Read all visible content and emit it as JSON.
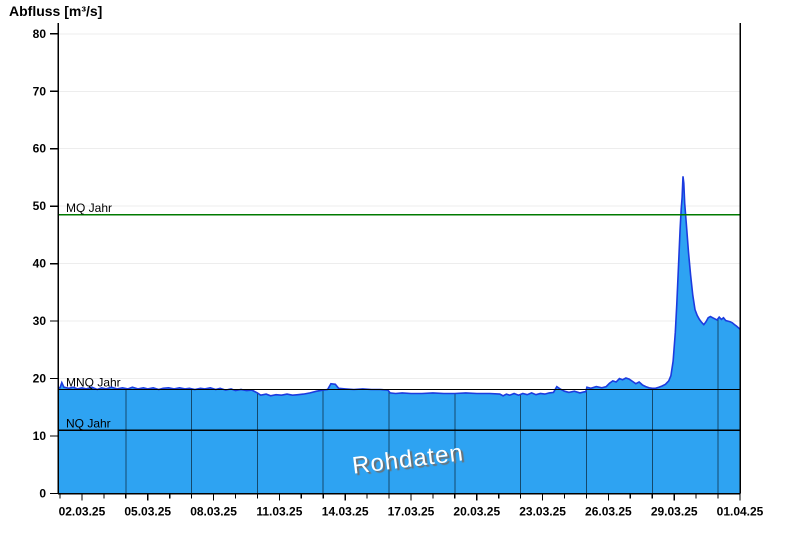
{
  "title": "Abfluss [m³/s]",
  "watermark": "Rohdaten",
  "colors": {
    "background": "#ffffff",
    "area_fill": "#2ea3f2",
    "area_stroke": "#1c3bdf",
    "grid_horizontal": "#ededed",
    "grid_vertical_in_area": "rgba(0,0,0,0.55)",
    "axis": "#000000",
    "mq_line": "#007a00",
    "mnq_line": "#000000",
    "nq_line": "#000000",
    "label_text": "#000000"
  },
  "chart_data": {
    "type": "area",
    "title": "Abfluss [m³/s]",
    "ylabel": "Abfluss [m³/s]",
    "ylim": [
      0,
      80
    ],
    "y_ticks": [
      0,
      10,
      20,
      30,
      40,
      50,
      60,
      70,
      80
    ],
    "x_unit": "days since start of axis (01.03.25)",
    "x_range_days": [
      0,
      31
    ],
    "x_tick_labels": [
      "02.03.25",
      "05.03.25",
      "08.03.25",
      "11.03.25",
      "14.03.25",
      "17.03.25",
      "20.03.25",
      "23.03.25",
      "26.03.25",
      "29.03.25",
      "01.04.25"
    ],
    "x_label_days": [
      1,
      4,
      7,
      10,
      13,
      16,
      19,
      22,
      25,
      28,
      31
    ],
    "v_grid_days": [
      3,
      6,
      9,
      12,
      15,
      18,
      21,
      24,
      27,
      30
    ],
    "grid": "horizontal light, vertical only visible inside area",
    "legend_position": "none",
    "reference_lines": [
      {
        "label": "MQ Jahr",
        "value": 48.5,
        "color_key": "mq_line"
      },
      {
        "label": "MNQ Jahr",
        "value": 18.1,
        "color_key": "mnq_line"
      },
      {
        "label": "NQ Jahr",
        "value": 11.0,
        "color_key": "nq_line"
      }
    ],
    "series": [
      {
        "name": "Rohdaten",
        "points": [
          [
            0,
            18.4
          ],
          [
            0.08,
            19.3
          ],
          [
            0.18,
            18.5
          ],
          [
            0.4,
            18.3
          ],
          [
            0.6,
            18.5
          ],
          [
            0.8,
            18.2
          ],
          [
            1.0,
            18.4
          ],
          [
            1.2,
            18.2
          ],
          [
            1.45,
            18.5
          ],
          [
            1.7,
            18.1
          ],
          [
            1.9,
            18.4
          ],
          [
            2.1,
            18.2
          ],
          [
            2.35,
            18.5
          ],
          [
            2.6,
            18.2
          ],
          [
            2.85,
            18.4
          ],
          [
            3.1,
            18.2
          ],
          [
            3.3,
            18.5
          ],
          [
            3.55,
            18.2
          ],
          [
            3.8,
            18.4
          ],
          [
            4.0,
            18.2
          ],
          [
            4.25,
            18.4
          ],
          [
            4.5,
            18.1
          ],
          [
            4.7,
            18.3
          ],
          [
            4.95,
            18.4
          ],
          [
            5.2,
            18.2
          ],
          [
            5.45,
            18.4
          ],
          [
            5.7,
            18.2
          ],
          [
            5.9,
            18.3
          ],
          [
            6.15,
            18.1
          ],
          [
            6.4,
            18.3
          ],
          [
            6.6,
            18.2
          ],
          [
            6.85,
            18.4
          ],
          [
            7.1,
            18.1
          ],
          [
            7.3,
            18.3
          ],
          [
            7.55,
            18.0
          ],
          [
            7.8,
            18.2
          ],
          [
            8.0,
            17.9
          ],
          [
            8.25,
            18.1
          ],
          [
            8.5,
            17.9
          ],
          [
            8.75,
            18.0
          ],
          [
            9.0,
            17.5
          ],
          [
            9.15,
            17.1
          ],
          [
            9.4,
            17.3
          ],
          [
            9.6,
            17.0
          ],
          [
            9.85,
            17.2
          ],
          [
            10.1,
            17.1
          ],
          [
            10.35,
            17.3
          ],
          [
            10.6,
            17.1
          ],
          [
            10.85,
            17.2
          ],
          [
            11.1,
            17.3
          ],
          [
            11.4,
            17.5
          ],
          [
            11.7,
            17.8
          ],
          [
            12.0,
            18.0
          ],
          [
            12.2,
            18.1
          ],
          [
            12.35,
            19.1
          ],
          [
            12.55,
            19.0
          ],
          [
            12.7,
            18.3
          ],
          [
            13.0,
            18.2
          ],
          [
            13.4,
            18.1
          ],
          [
            13.8,
            18.2
          ],
          [
            14.2,
            18.1
          ],
          [
            14.6,
            18.1
          ],
          [
            14.95,
            18.0
          ],
          [
            15.05,
            17.5
          ],
          [
            15.3,
            17.4
          ],
          [
            15.6,
            17.5
          ],
          [
            16.0,
            17.4
          ],
          [
            16.5,
            17.4
          ],
          [
            17.0,
            17.5
          ],
          [
            17.5,
            17.4
          ],
          [
            18.0,
            17.4
          ],
          [
            18.5,
            17.5
          ],
          [
            19.0,
            17.4
          ],
          [
            19.6,
            17.4
          ],
          [
            20.05,
            17.3
          ],
          [
            20.2,
            17.0
          ],
          [
            20.35,
            17.3
          ],
          [
            20.5,
            17.1
          ],
          [
            20.7,
            17.4
          ],
          [
            20.9,
            17.1
          ],
          [
            21.1,
            17.4
          ],
          [
            21.3,
            17.2
          ],
          [
            21.5,
            17.5
          ],
          [
            21.7,
            17.2
          ],
          [
            21.9,
            17.4
          ],
          [
            22.1,
            17.3
          ],
          [
            22.3,
            17.5
          ],
          [
            22.5,
            17.6
          ],
          [
            22.65,
            18.6
          ],
          [
            22.8,
            18.2
          ],
          [
            23.0,
            17.8
          ],
          [
            23.2,
            17.6
          ],
          [
            23.45,
            17.8
          ],
          [
            23.7,
            17.5
          ],
          [
            23.9,
            17.7
          ],
          [
            23.97,
            17.7
          ],
          [
            24.02,
            18.5
          ],
          [
            24.2,
            18.3
          ],
          [
            24.45,
            18.6
          ],
          [
            24.7,
            18.4
          ],
          [
            24.9,
            18.6
          ],
          [
            25.05,
            19.2
          ],
          [
            25.2,
            19.6
          ],
          [
            25.35,
            19.4
          ],
          [
            25.5,
            20.0
          ],
          [
            25.65,
            19.8
          ],
          [
            25.8,
            20.1
          ],
          [
            25.95,
            19.9
          ],
          [
            26.1,
            19.5
          ],
          [
            26.25,
            19.1
          ],
          [
            26.4,
            19.4
          ],
          [
            26.55,
            18.9
          ],
          [
            26.7,
            18.6
          ],
          [
            26.85,
            18.4
          ],
          [
            27.0,
            18.3
          ],
          [
            27.15,
            18.3
          ],
          [
            27.3,
            18.5
          ],
          [
            27.45,
            18.7
          ],
          [
            27.6,
            19.0
          ],
          [
            27.75,
            19.6
          ],
          [
            27.85,
            20.5
          ],
          [
            27.95,
            23.0
          ],
          [
            28.05,
            28.0
          ],
          [
            28.12,
            33.0
          ],
          [
            28.2,
            40.0
          ],
          [
            28.27,
            46.0
          ],
          [
            28.32,
            49.5
          ],
          [
            28.36,
            51.5
          ],
          [
            28.4,
            55.2
          ],
          [
            28.44,
            54.0
          ],
          [
            28.48,
            50.5
          ],
          [
            28.55,
            47.0
          ],
          [
            28.65,
            42.0
          ],
          [
            28.75,
            38.0
          ],
          [
            28.85,
            34.5
          ],
          [
            28.95,
            32.0
          ],
          [
            29.05,
            31.0
          ],
          [
            29.15,
            30.3
          ],
          [
            29.25,
            29.8
          ],
          [
            29.35,
            29.4
          ],
          [
            29.45,
            29.9
          ],
          [
            29.55,
            30.6
          ],
          [
            29.65,
            30.8
          ],
          [
            29.75,
            30.6
          ],
          [
            29.85,
            30.4
          ],
          [
            29.95,
            30.2
          ],
          [
            30.05,
            30.7
          ],
          [
            30.15,
            30.3
          ],
          [
            30.25,
            30.6
          ],
          [
            30.35,
            30.1
          ],
          [
            30.45,
            30.0
          ],
          [
            30.55,
            29.9
          ],
          [
            30.65,
            29.7
          ],
          [
            30.75,
            29.4
          ],
          [
            30.85,
            29.1
          ],
          [
            31.0,
            28.6
          ]
        ]
      }
    ]
  }
}
